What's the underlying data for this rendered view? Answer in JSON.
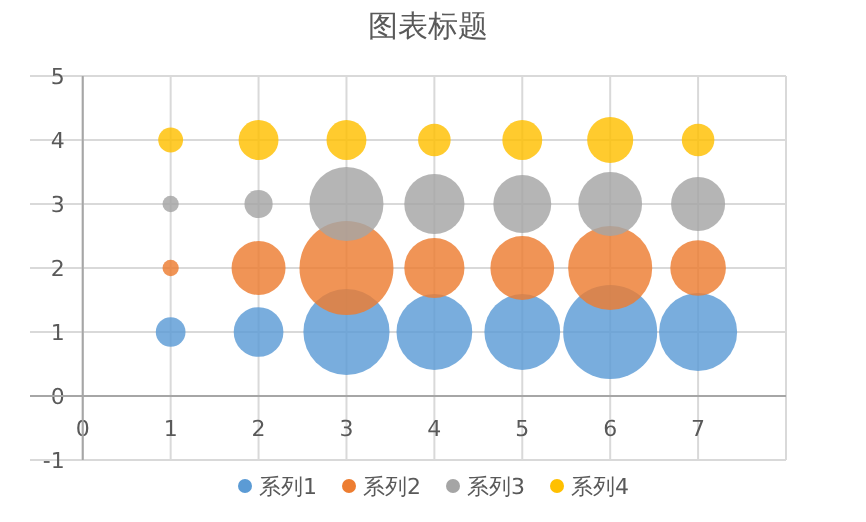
{
  "chart_data": {
    "type": "bubble",
    "title": "图表标题",
    "x": [
      1,
      2,
      3,
      4,
      5,
      6,
      7
    ],
    "xlim": [
      -0.6,
      8
    ],
    "xticks": [
      0,
      1,
      2,
      3,
      4,
      5,
      6,
      7,
      {
        "value": 8,
        "label": null
      }
    ],
    "ylim": [
      -1,
      5
    ],
    "yticks": [
      -1,
      0,
      1,
      2,
      3,
      4,
      5
    ],
    "grid": true,
    "legend": "bottom",
    "series": [
      {
        "name": "系列1",
        "color": "#5b9bd5",
        "values": [
          1,
          1,
          1,
          1,
          1,
          1,
          1
        ],
        "sizes": [
          0.1,
          0.28,
          0.84,
          0.65,
          0.65,
          1,
          0.69
        ]
      },
      {
        "name": "系列2",
        "color": "#ed7d31",
        "values": [
          2,
          2,
          2,
          2,
          2,
          2,
          2
        ],
        "sizes": [
          0.03,
          0.33,
          1,
          0.41,
          0.46,
          0.8,
          0.35
        ]
      },
      {
        "name": "系列3",
        "color": "#a5a5a5",
        "values": [
          3,
          3,
          3,
          3,
          3,
          3,
          3
        ],
        "sizes": [
          0.03,
          0.09,
          0.62,
          0.41,
          0.38,
          0.46,
          0.33
        ]
      },
      {
        "name": "系列4",
        "color": "#ffc000",
        "values": [
          4,
          4,
          4,
          4,
          4,
          4,
          4
        ],
        "sizes": [
          0.07,
          0.18,
          0.18,
          0.12,
          0.18,
          0.24,
          0.12
        ]
      }
    ]
  }
}
